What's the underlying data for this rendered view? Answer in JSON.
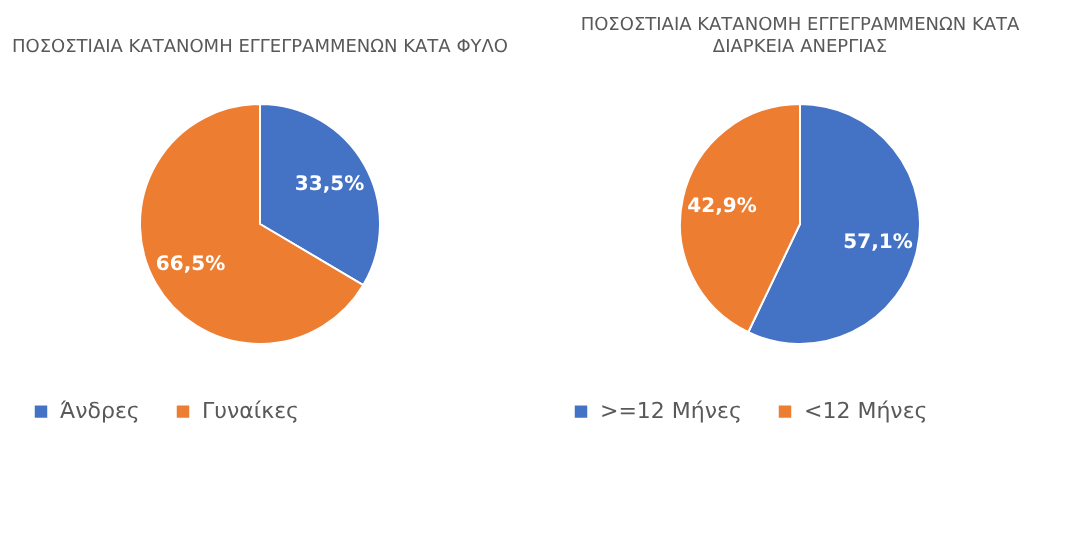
{
  "chart_data": [
    {
      "type": "pie",
      "title": "ΠΟΣΟΣΤΙΑΙΑ ΚΑΤΑΝΟΜΗ ΕΓΓΕΓΡΑΜΜΕΝΩΝ ΚΑΤΑ ΦΥΛΟ",
      "categories": [
        "Άνδρες",
        "Γυναίκες"
      ],
      "values": [
        33.5,
        66.5
      ],
      "colors": [
        "#4472c4",
        "#ed7d31"
      ],
      "value_labels": [
        "33,5%",
        "66,5%"
      ],
      "legend": "bottom"
    },
    {
      "type": "pie",
      "title": "ΠΟΣΟΣΤΙΑΙΑ ΚΑΤΑΝΟΜΗ ΕΓΓΕΓΡΑΜΜΕΝΩΝ ΚΑΤΑ ΔΙΑΡΚΕΙΑ ΑΝΕΡΓΙΑΣ",
      "categories": [
        ">=12 Μήνες",
        "<12 Μήνες"
      ],
      "values": [
        57.1,
        42.9
      ],
      "colors": [
        "#4472c4",
        "#ed7d31"
      ],
      "value_labels": [
        "57,1%",
        "42,9%"
      ],
      "legend": "bottom"
    }
  ]
}
